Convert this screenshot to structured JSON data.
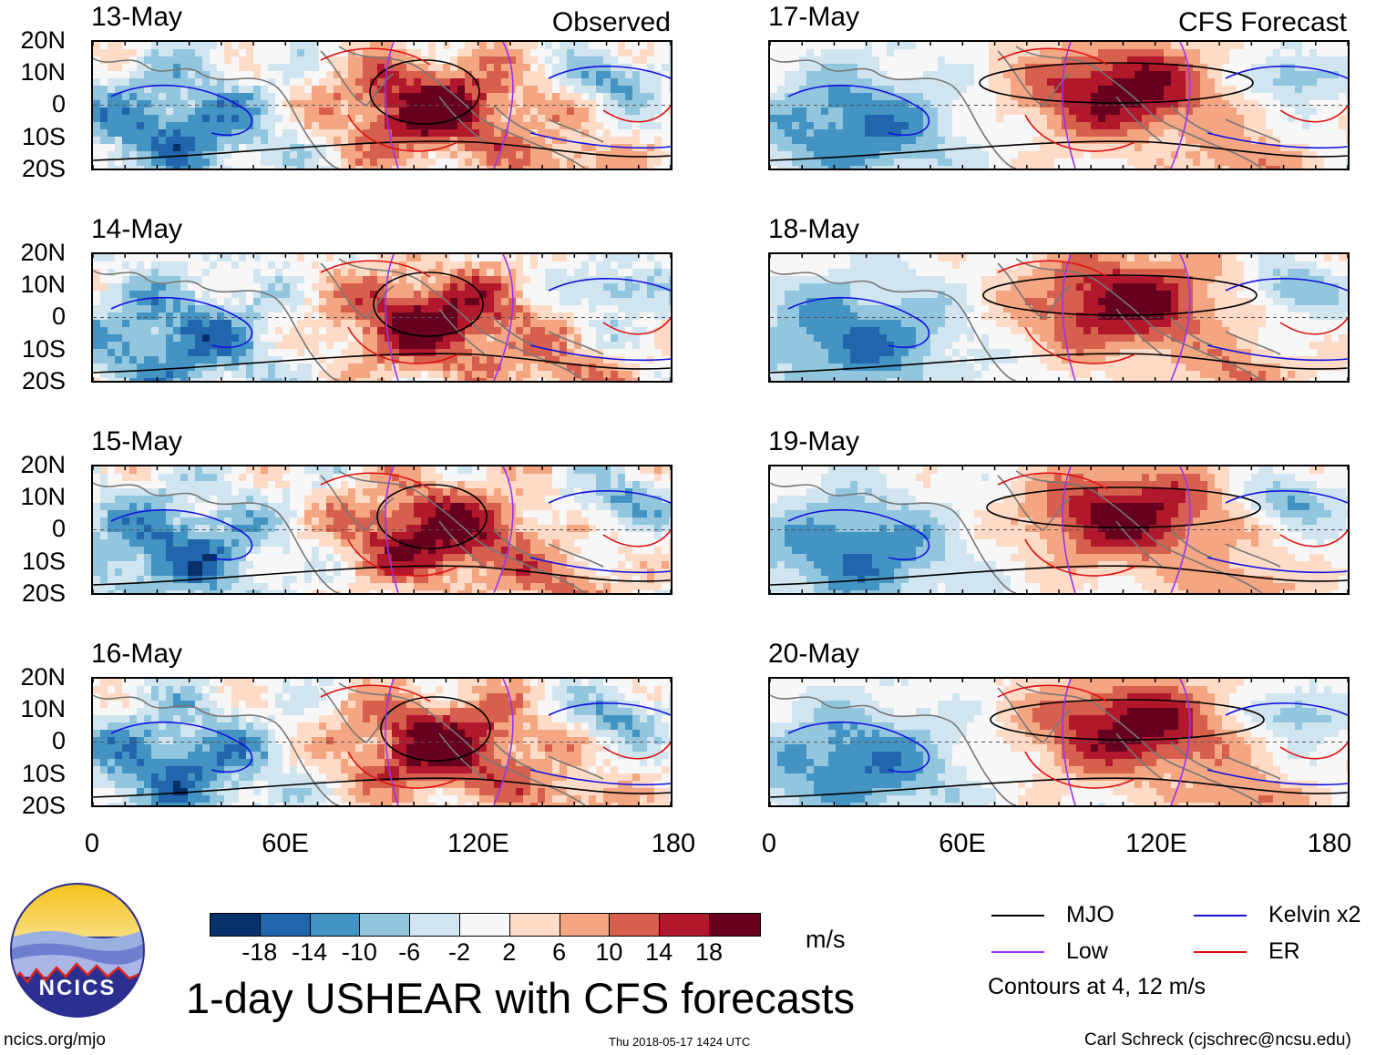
{
  "chart_data": {
    "type": "heatmap",
    "title": "1-day USHEAR with CFS forecasts",
    "units": "m/s",
    "contour_note": "Contours at 4, 12 m/s",
    "lat_ticks": [
      "20N",
      "10N",
      "0",
      "10S",
      "20S"
    ],
    "lon_ticks": [
      "0",
      "60E",
      "120E",
      "180"
    ],
    "lon_range": [
      0,
      180
    ],
    "lat_range": [
      -20,
      20
    ],
    "observed_label": "Observed",
    "forecast_label": "CFS Forecast",
    "panels": [
      {
        "date": "13-May",
        "column": "observed"
      },
      {
        "date": "14-May",
        "column": "observed"
      },
      {
        "date": "15-May",
        "column": "observed"
      },
      {
        "date": "16-May",
        "column": "observed"
      },
      {
        "date": "17-May",
        "column": "forecast"
      },
      {
        "date": "18-May",
        "column": "forecast"
      },
      {
        "date": "19-May",
        "column": "forecast"
      },
      {
        "date": "20-May",
        "column": "forecast"
      }
    ],
    "colorbar": {
      "labels": [
        "-18",
        "-14",
        "-10",
        "-6",
        "-2",
        "2",
        "6",
        "10",
        "14",
        "18"
      ],
      "colors": [
        "#08306b",
        "#2166ac",
        "#4393c3",
        "#92c5de",
        "#d1e5f0",
        "#f7f7f7",
        "#fddbc7",
        "#f4a582",
        "#d6604d",
        "#b2182b",
        "#67001f"
      ]
    },
    "legend": [
      {
        "label": "MJO",
        "color": "#000000"
      },
      {
        "label": "Kelvin x2",
        "color": "#1010e0"
      },
      {
        "label": "Low",
        "color": "#9933ee"
      },
      {
        "label": "ER",
        "color": "#e01010"
      }
    ]
  },
  "footer": {
    "site": "ncics.org/mjo",
    "timestamp": "Thu 2018-05-17 1424 UTC",
    "author": "Carl Schreck (cjschrec@ncsu.edu)",
    "logo_text": "NCICS"
  }
}
